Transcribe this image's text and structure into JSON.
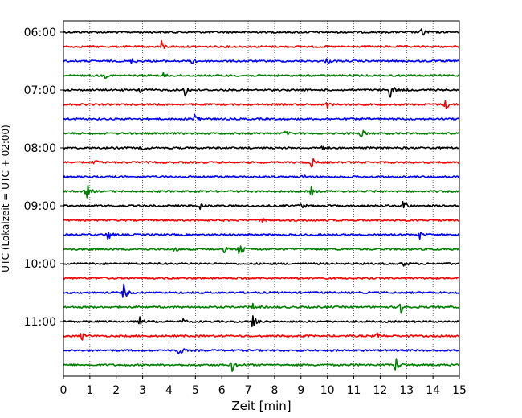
{
  "chart_data": {
    "type": "line",
    "xlabel": "Zeit  [min]",
    "ylabel": "UTC (Lokalzeit = UTC + 02:00)",
    "xlim": [
      0,
      15
    ],
    "x_ticks": [
      0,
      1,
      2,
      3,
      4,
      5,
      6,
      7,
      8,
      9,
      10,
      11,
      12,
      13,
      14,
      15
    ],
    "x_tick_labels": [
      "0",
      "1",
      "2",
      "3",
      "4",
      "5",
      "6",
      "7",
      "8",
      "9",
      "10",
      "11",
      "12",
      "13",
      "14",
      "15"
    ],
    "y_tick_labels": [
      {
        "label": "06:00",
        "trace": 0
      },
      {
        "label": "07:00",
        "trace": 4
      },
      {
        "label": "08:00",
        "trace": 8
      },
      {
        "label": "09:00",
        "trace": 12
      },
      {
        "label": "10:00",
        "trace": 16
      },
      {
        "label": "11:00",
        "trace": 20
      }
    ],
    "grid": "vertical dotted lines at each minute",
    "trace_interval_minutes": 15,
    "colors": [
      "#000000",
      "#ff0000",
      "#0000ff",
      "#008000"
    ],
    "traces": [
      {
        "start": "06:00",
        "color": "#000000",
        "events": [
          {
            "t": 13.6,
            "a": 7
          }
        ]
      },
      {
        "start": "06:15",
        "color": "#ff0000",
        "events": [
          {
            "t": 3.7,
            "a": 8
          }
        ]
      },
      {
        "start": "06:30",
        "color": "#0000ff",
        "events": [
          {
            "t": 2.6,
            "a": 3
          },
          {
            "t": 4.9,
            "a": 3.5
          },
          {
            "t": 10.0,
            "a": 3
          }
        ]
      },
      {
        "start": "06:45",
        "color": "#008000",
        "events": [
          {
            "t": 1.6,
            "a": 2.5
          },
          {
            "t": 3.8,
            "a": 2.5
          }
        ]
      },
      {
        "start": "07:00",
        "color": "#000000",
        "events": [
          {
            "t": 2.9,
            "a": 5
          },
          {
            "t": 4.6,
            "a": 8
          },
          {
            "t": 12.4,
            "a": 12
          }
        ]
      },
      {
        "start": "07:15",
        "color": "#ff0000",
        "events": [
          {
            "t": 10.0,
            "a": 3
          },
          {
            "t": 14.5,
            "a": 6
          }
        ]
      },
      {
        "start": "07:30",
        "color": "#0000ff",
        "events": [
          {
            "t": 5.0,
            "a": 11
          }
        ]
      },
      {
        "start": "07:45",
        "color": "#008000",
        "events": [
          {
            "t": 8.4,
            "a": 2.5
          },
          {
            "t": 11.3,
            "a": 6
          }
        ]
      },
      {
        "start": "08:00",
        "color": "#000000",
        "events": [
          {
            "t": 3.0,
            "a": 2
          },
          {
            "t": 9.8,
            "a": 2.5
          }
        ]
      },
      {
        "start": "08:15",
        "color": "#ff0000",
        "events": [
          {
            "t": 1.2,
            "a": 3
          },
          {
            "t": 9.4,
            "a": 7
          }
        ]
      },
      {
        "start": "08:30",
        "color": "#0000ff",
        "events": [
          {
            "t": 9.1,
            "a": 2
          }
        ]
      },
      {
        "start": "08:45",
        "color": "#008000",
        "events": [
          {
            "t": 0.9,
            "a": 10
          },
          {
            "t": 9.4,
            "a": 5
          }
        ]
      },
      {
        "start": "09:00",
        "color": "#000000",
        "events": [
          {
            "t": 5.2,
            "a": 5
          },
          {
            "t": 9.0,
            "a": 4
          },
          {
            "t": 12.9,
            "a": 9
          }
        ]
      },
      {
        "start": "09:15",
        "color": "#ff0000",
        "events": [
          {
            "t": 7.5,
            "a": 4
          }
        ]
      },
      {
        "start": "09:30",
        "color": "#0000ff",
        "events": [
          {
            "t": 1.7,
            "a": 7
          },
          {
            "t": 13.5,
            "a": 5
          }
        ]
      },
      {
        "start": "09:45",
        "color": "#008000",
        "events": [
          {
            "t": 4.2,
            "a": 4
          },
          {
            "t": 6.1,
            "a": 3.5
          },
          {
            "t": 6.7,
            "a": 11
          }
        ]
      },
      {
        "start": "10:00",
        "color": "#000000",
        "events": [
          {
            "t": 12.9,
            "a": 4
          }
        ]
      },
      {
        "start": "10:15",
        "color": "#ff0000",
        "events": [
          {
            "t": 6.7,
            "a": 3
          },
          {
            "t": 8.8,
            "a": 2
          }
        ]
      },
      {
        "start": "10:30",
        "color": "#0000ff",
        "events": [
          {
            "t": 2.3,
            "a": 10
          }
        ]
      },
      {
        "start": "10:45",
        "color": "#008000",
        "events": [
          {
            "t": 7.2,
            "a": 4
          },
          {
            "t": 12.8,
            "a": 7
          }
        ]
      },
      {
        "start": "11:00",
        "color": "#000000",
        "events": [
          {
            "t": 2.9,
            "a": 5
          },
          {
            "t": 4.5,
            "a": 4
          },
          {
            "t": 7.2,
            "a": 12
          }
        ]
      },
      {
        "start": "11:15",
        "color": "#ff0000",
        "events": [
          {
            "t": 0.7,
            "a": 5
          },
          {
            "t": 11.9,
            "a": 3
          }
        ]
      },
      {
        "start": "11:30",
        "color": "#0000ff",
        "events": [
          {
            "t": 4.4,
            "a": 7
          }
        ]
      },
      {
        "start": "11:45",
        "color": "#008000",
        "events": [
          {
            "t": 6.4,
            "a": 8
          },
          {
            "t": 12.6,
            "a": 10
          }
        ]
      }
    ]
  }
}
